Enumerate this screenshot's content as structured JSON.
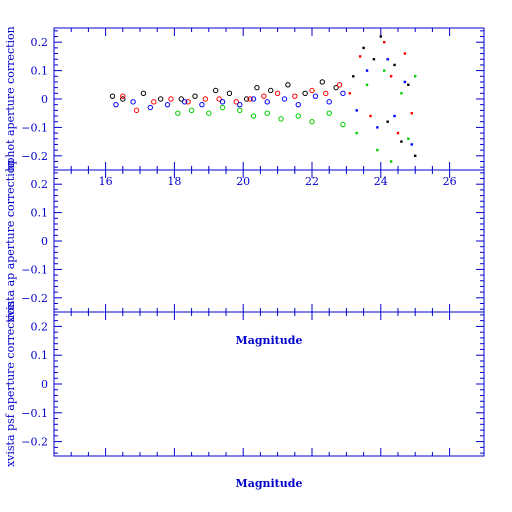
{
  "colors": {
    "axis": "#0000cc",
    "black": "#000000",
    "red": "#ff0000",
    "green": "#00cc00",
    "blue": "#0000ff"
  },
  "chart_data": [
    {
      "type": "scatter",
      "id": "top",
      "ylabel": "hphot aperture correction",
      "xlim": [
        14.5,
        27
      ],
      "ylim": [
        -0.25,
        0.25
      ],
      "xticks": [
        "16",
        "18",
        "20",
        "22",
        "24",
        "26"
      ],
      "yticks": [
        "0.2",
        "0.1",
        "0",
        "−0.1",
        "−0.2"
      ],
      "series": [
        {
          "color": "black",
          "points": [
            [
              16.2,
              0.01
            ],
            [
              16.5,
              0.0
            ],
            [
              17.1,
              0.02
            ],
            [
              17.6,
              0.0
            ],
            [
              18.2,
              0.0
            ],
            [
              18.6,
              0.01
            ],
            [
              19.2,
              0.03
            ],
            [
              19.6,
              0.02
            ],
            [
              20.1,
              0.0
            ],
            [
              20.4,
              0.04
            ],
            [
              20.8,
              0.03
            ],
            [
              21.3,
              0.05
            ],
            [
              21.8,
              0.02
            ],
            [
              22.3,
              0.06
            ],
            [
              22.7,
              0.04
            ],
            [
              23.2,
              0.08
            ],
            [
              23.5,
              0.18
            ],
            [
              23.8,
              0.14
            ],
            [
              24.0,
              0.22
            ],
            [
              24.2,
              -0.08
            ],
            [
              24.4,
              0.12
            ],
            [
              24.6,
              -0.15
            ],
            [
              24.8,
              0.05
            ],
            [
              25.0,
              -0.2
            ]
          ]
        },
        {
          "color": "red",
          "points": [
            [
              16.5,
              0.01
            ],
            [
              16.9,
              -0.04
            ],
            [
              17.4,
              -0.01
            ],
            [
              17.9,
              0.0
            ],
            [
              18.4,
              -0.01
            ],
            [
              18.9,
              0.0
            ],
            [
              19.3,
              0.0
            ],
            [
              19.8,
              -0.01
            ],
            [
              20.2,
              0.0
            ],
            [
              20.6,
              0.01
            ],
            [
              21.0,
              0.02
            ],
            [
              21.5,
              0.01
            ],
            [
              22.0,
              0.03
            ],
            [
              22.4,
              0.02
            ],
            [
              22.8,
              0.05
            ],
            [
              23.1,
              0.02
            ],
            [
              23.4,
              0.15
            ],
            [
              23.7,
              -0.06
            ],
            [
              24.1,
              0.2
            ],
            [
              24.3,
              0.08
            ],
            [
              24.5,
              -0.12
            ],
            [
              24.7,
              0.16
            ],
            [
              24.9,
              -0.05
            ]
          ]
        },
        {
          "color": "green",
          "points": [
            [
              18.1,
              -0.05
            ],
            [
              18.5,
              -0.04
            ],
            [
              19.0,
              -0.05
            ],
            [
              19.4,
              -0.03
            ],
            [
              19.9,
              -0.04
            ],
            [
              20.3,
              -0.06
            ],
            [
              20.7,
              -0.05
            ],
            [
              21.1,
              -0.07
            ],
            [
              21.6,
              -0.06
            ],
            [
              22.0,
              -0.08
            ],
            [
              22.5,
              -0.05
            ],
            [
              22.9,
              -0.09
            ],
            [
              23.3,
              -0.12
            ],
            [
              23.6,
              0.05
            ],
            [
              23.9,
              -0.18
            ],
            [
              24.1,
              0.1
            ],
            [
              24.3,
              -0.22
            ],
            [
              24.6,
              0.02
            ],
            [
              24.8,
              -0.14
            ],
            [
              25.0,
              0.08
            ]
          ]
        },
        {
          "color": "blue",
          "points": [
            [
              16.3,
              -0.02
            ],
            [
              16.8,
              -0.01
            ],
            [
              17.3,
              -0.03
            ],
            [
              17.8,
              -0.02
            ],
            [
              18.3,
              -0.01
            ],
            [
              18.8,
              -0.02
            ],
            [
              19.4,
              -0.01
            ],
            [
              19.9,
              -0.02
            ],
            [
              20.3,
              0.0
            ],
            [
              20.7,
              -0.01
            ],
            [
              21.2,
              0.0
            ],
            [
              21.6,
              -0.02
            ],
            [
              22.1,
              0.01
            ],
            [
              22.5,
              -0.01
            ],
            [
              22.9,
              0.02
            ],
            [
              23.3,
              -0.04
            ],
            [
              23.6,
              0.1
            ],
            [
              23.9,
              -0.1
            ],
            [
              24.2,
              0.14
            ],
            [
              24.4,
              -0.06
            ],
            [
              24.7,
              0.06
            ],
            [
              24.9,
              -0.16
            ]
          ]
        }
      ]
    },
    {
      "type": "scatter",
      "id": "middle",
      "xlabel": "Magnitude",
      "ylabel": "xvista ap aperture correction",
      "xlim": [
        14.5,
        27
      ],
      "ylim": [
        -0.25,
        0.25
      ],
      "yticks": [
        "0.2",
        "0.1",
        "0",
        "−0.1",
        "−0.2"
      ],
      "series": []
    },
    {
      "type": "scatter",
      "id": "bottom",
      "xlabel": "Magnitude",
      "ylabel": "xvista psf aperture correction",
      "xlim": [
        14.5,
        27
      ],
      "ylim": [
        -0.25,
        0.25
      ],
      "yticks": [
        "0.2",
        "0.1",
        "0",
        "−0.1",
        "−0.2"
      ],
      "series": []
    }
  ]
}
